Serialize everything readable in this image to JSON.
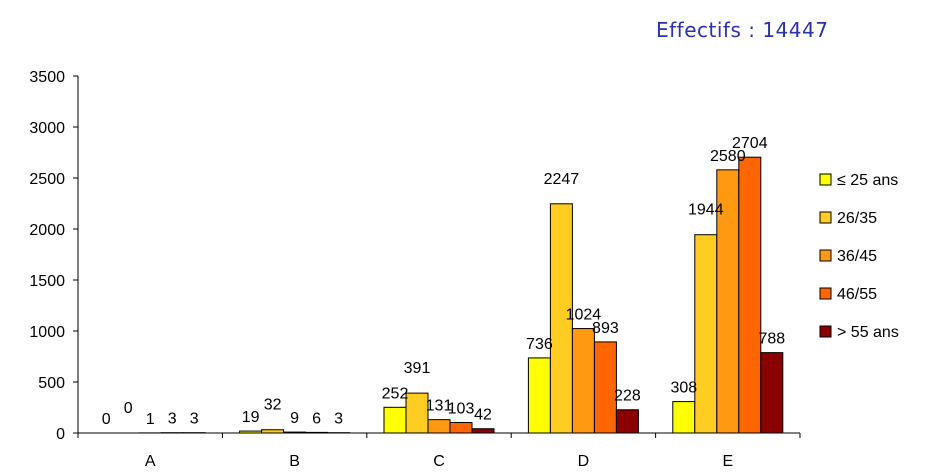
{
  "header": {
    "count_label": "Effectifs : 14447"
  },
  "chart_data": {
    "type": "bar",
    "title": "",
    "xlabel": "",
    "ylabel": "",
    "categories": [
      "A",
      "B",
      "C",
      "D",
      "E"
    ],
    "ylim": [
      0,
      3500
    ],
    "yticks": [
      0,
      500,
      1000,
      1500,
      2000,
      2500,
      3000,
      3500
    ],
    "grid": false,
    "legend_position": "right",
    "series": [
      {
        "name": "≤ 25 ans",
        "color": "#ffff00",
        "values": [
          0,
          19,
          252,
          736,
          308
        ]
      },
      {
        "name": "26/35",
        "color": "#ffcc22",
        "values": [
          0,
          32,
          391,
          2247,
          1944
        ]
      },
      {
        "name": "36/45",
        "color": "#ff9911",
        "values": [
          1,
          9,
          131,
          1024,
          2580
        ]
      },
      {
        "name": "46/55",
        "color": "#ff6600",
        "values": [
          3,
          6,
          103,
          893,
          2704
        ]
      },
      {
        "name": "> 55 ans",
        "color": "#8b0000",
        "values": [
          3,
          3,
          42,
          228,
          788
        ]
      }
    ]
  }
}
